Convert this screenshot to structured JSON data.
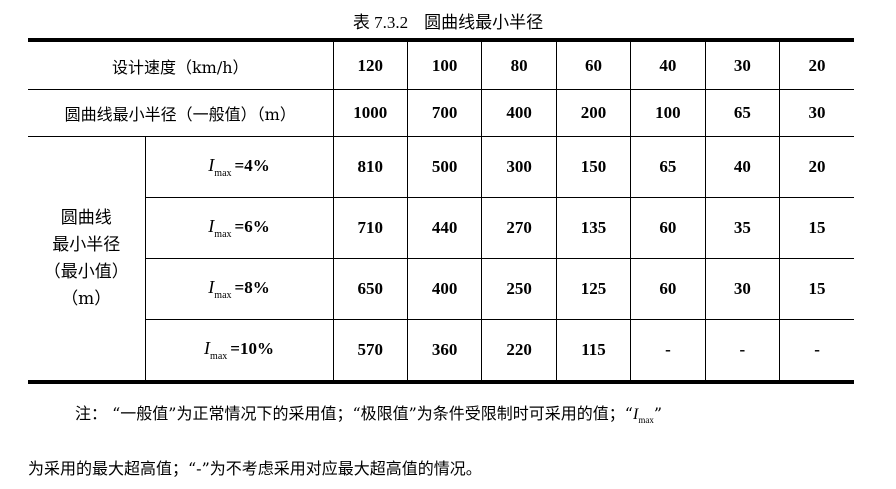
{
  "title": {
    "number": "表 7.3.2",
    "text": "圆曲线最小半径"
  },
  "table": {
    "speed_label": "设计速度（km/h）",
    "speeds": [
      "120",
      "100",
      "80",
      "60",
      "40",
      "30",
      "20"
    ],
    "general_label": "圆曲线最小半径（一般值）（m）",
    "general_values": [
      "1000",
      "700",
      "400",
      "200",
      "100",
      "65",
      "30"
    ],
    "min_group_label": [
      "圆曲线",
      "最小半径",
      "（最小值）",
      "（m）"
    ],
    "min_rows": [
      {
        "symbol": "I",
        "sub": "max",
        "condition": "=4%",
        "values": [
          "810",
          "500",
          "300",
          "150",
          "65",
          "40",
          "20"
        ]
      },
      {
        "symbol": "I",
        "sub": "max",
        "condition": "=6%",
        "values": [
          "710",
          "440",
          "270",
          "135",
          "60",
          "35",
          "15"
        ]
      },
      {
        "symbol": "I",
        "sub": "max",
        "condition": "=8%",
        "values": [
          "650",
          "400",
          "250",
          "125",
          "60",
          "30",
          "15"
        ]
      },
      {
        "symbol": "I",
        "sub": "max",
        "condition": "=10%",
        "values": [
          "570",
          "360",
          "220",
          "115",
          "-",
          "-",
          "-"
        ]
      }
    ]
  },
  "note": {
    "line1": "注：  “一般值”为正常情况下的采用值；“极限值”为条件受限制时可采用的值；“",
    "line1_symbol": "I",
    "line1_sub": "max",
    "line1_end": "”",
    "line2": "为采用的最大超高值；“-”为不考虑采用对应最大超高值的情况。"
  }
}
